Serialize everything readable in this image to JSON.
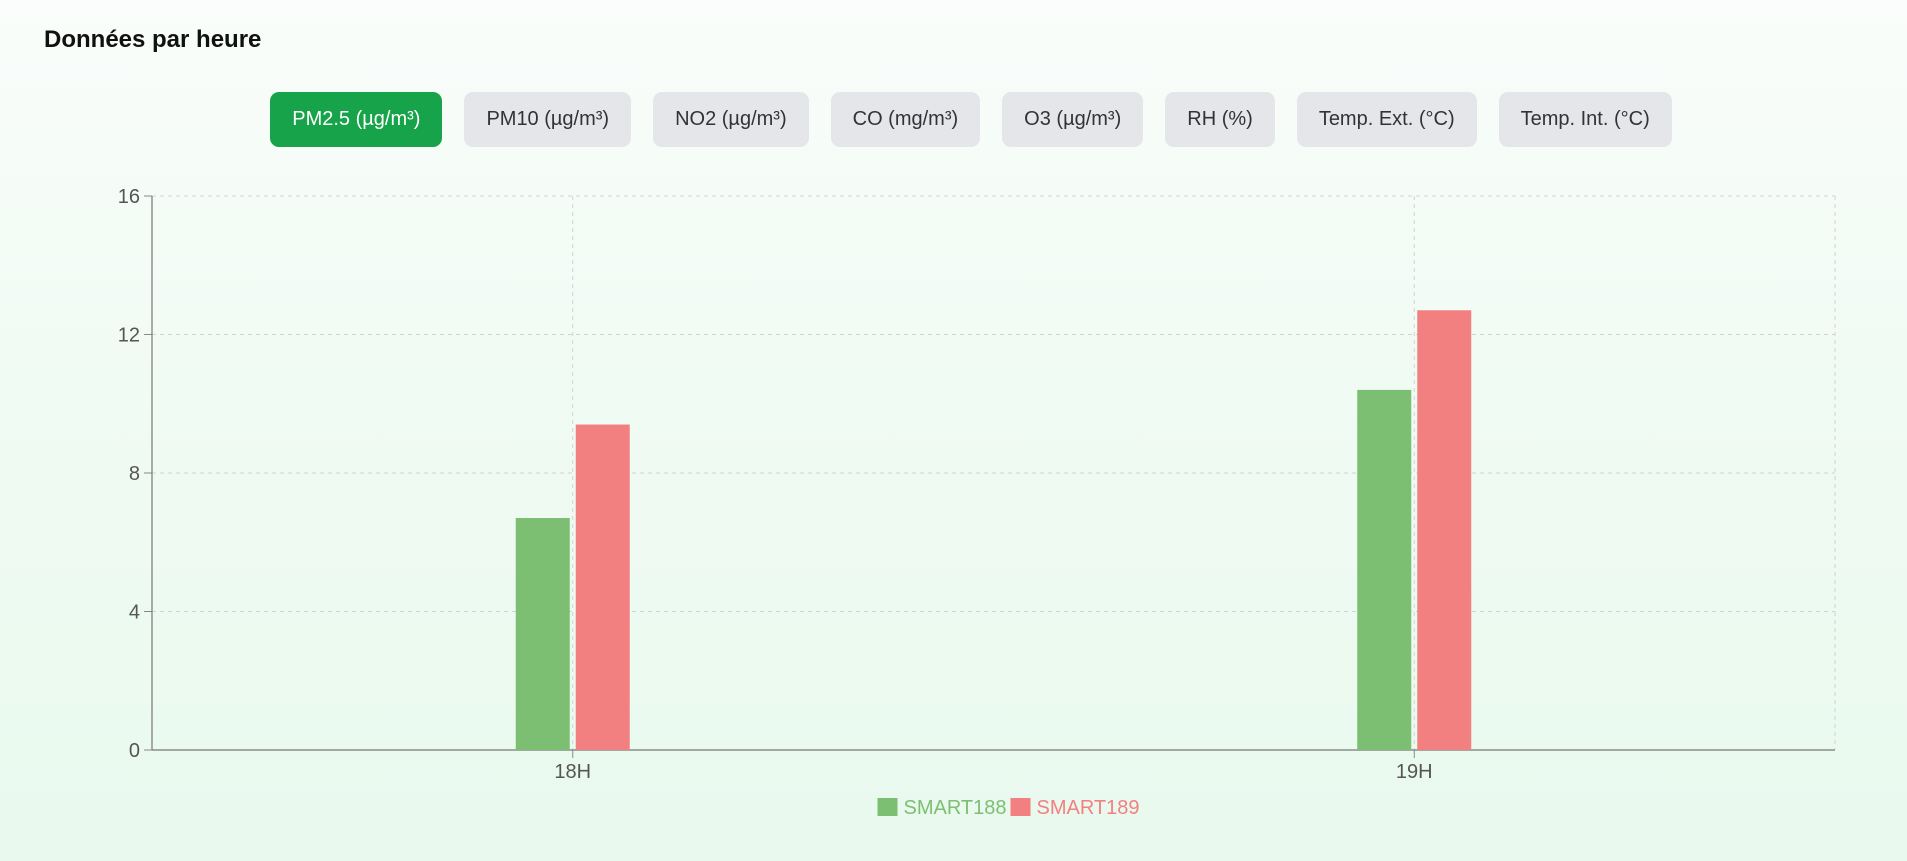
{
  "header": {
    "title": "Données par heure"
  },
  "tabs": [
    {
      "label": "PM2.5 (µg/m³)",
      "active": true
    },
    {
      "label": "PM10 (µg/m³)",
      "active": false
    },
    {
      "label": "NO2 (µg/m³)",
      "active": false
    },
    {
      "label": "CO (mg/m³)",
      "active": false
    },
    {
      "label": "O3 (µg/m³)",
      "active": false
    },
    {
      "label": "RH (%)",
      "active": false
    },
    {
      "label": "Temp. Ext. (°C)",
      "active": false
    },
    {
      "label": "Temp. Int. (°C)",
      "active": false
    }
  ],
  "colors": {
    "accent": "#17a34a",
    "series_1": "#7cbf73",
    "series_2": "#f38080"
  },
  "chart_data": {
    "type": "bar",
    "categories": [
      "18H",
      "19H"
    ],
    "series": [
      {
        "name": "SMART188",
        "values": [
          6.7,
          10.4
        ]
      },
      {
        "name": "SMART189",
        "values": [
          9.4,
          12.7
        ]
      }
    ],
    "ylim": [
      0,
      16
    ],
    "yticks": [
      "0",
      "4",
      "8",
      "12",
      "16"
    ],
    "grid": true,
    "legend": "bottom-center"
  }
}
